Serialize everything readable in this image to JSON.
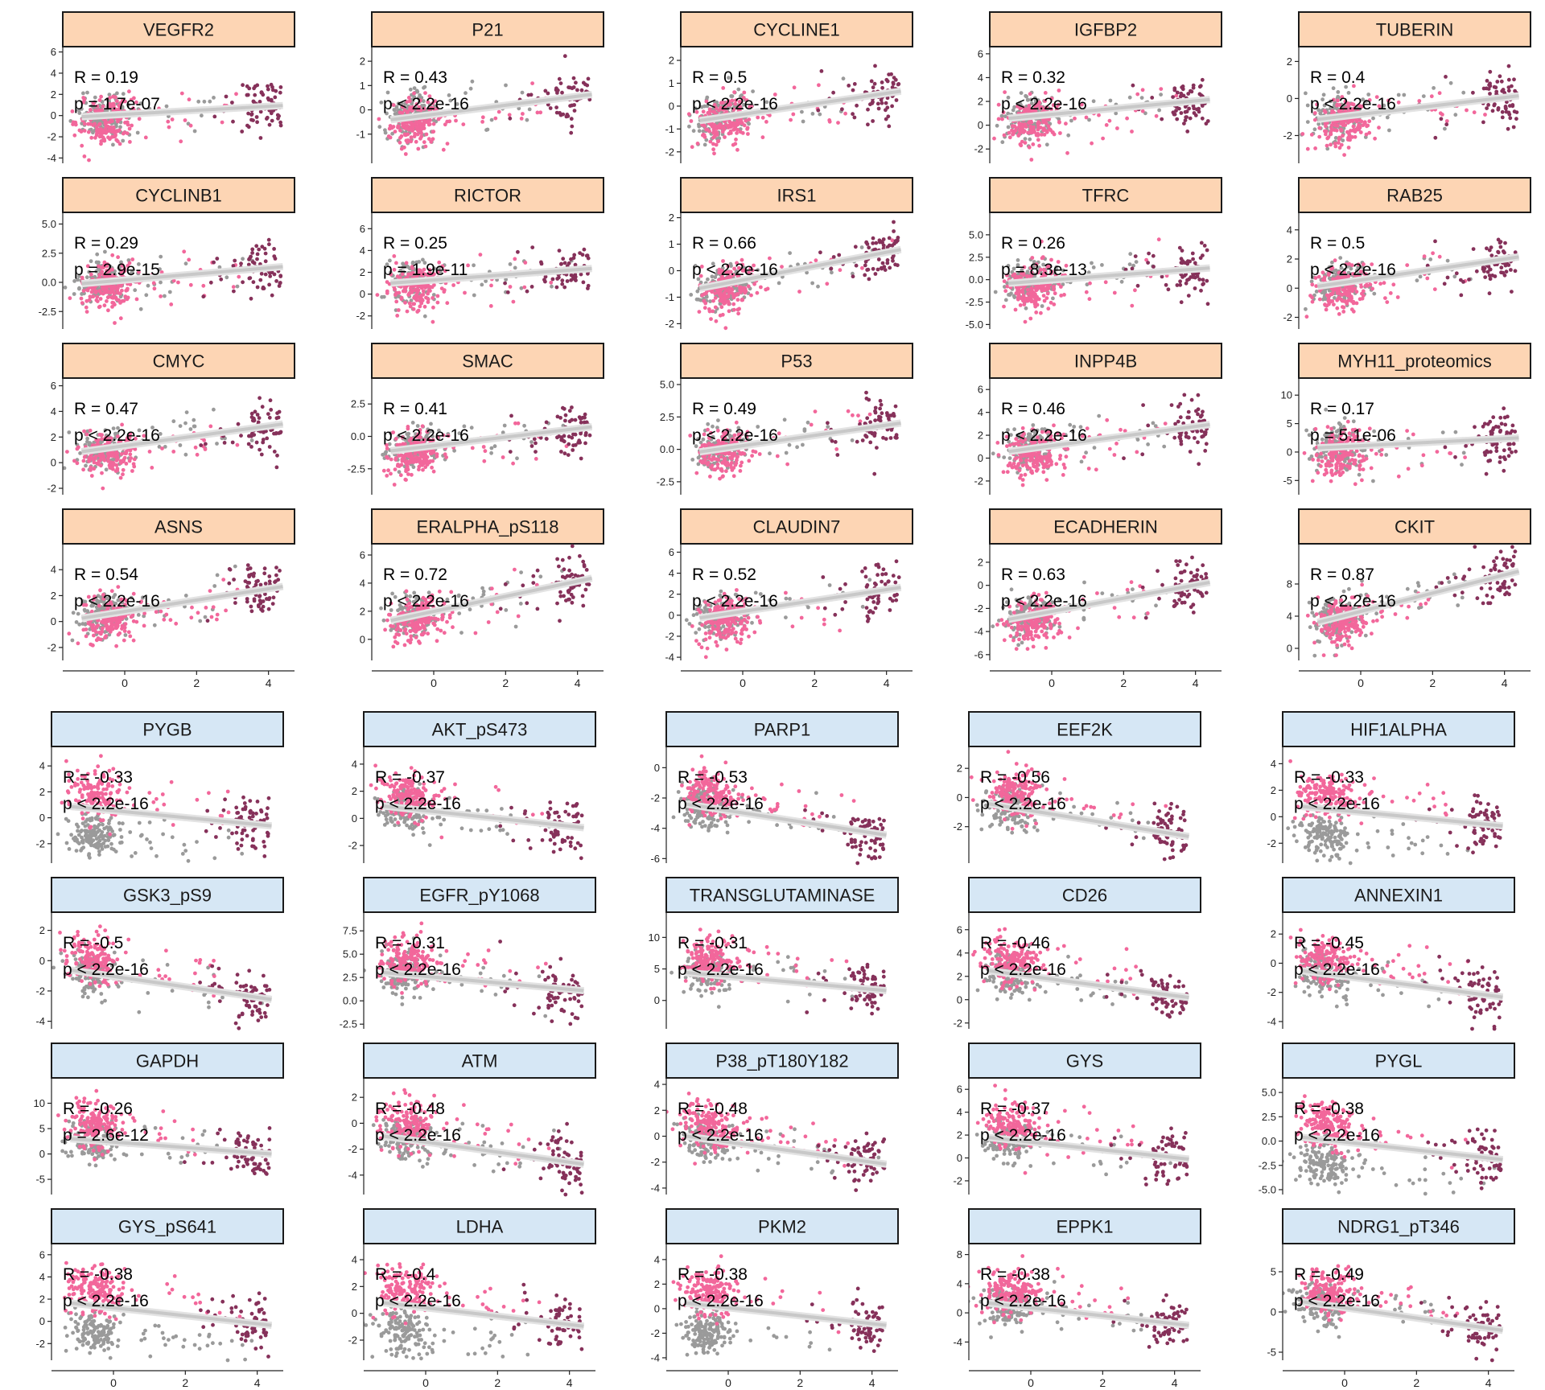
{
  "colors": {
    "up_strip_fill": "#fdd5b4",
    "down_strip_fill": "#d6e7f5",
    "strip_border": "#1a1a1a",
    "point_pink": "#f2679b",
    "point_gray": "#9a9a9a",
    "point_maroon": "#86315a",
    "fit_line": "#c8c8c8",
    "axis": "#222222"
  },
  "chart_data": {
    "type": "scatter",
    "layout": "faceted grid of scatter plots with linear fit line, 5 columns x 8 rows",
    "x_ticks": [
      "0",
      "2",
      "4"
    ],
    "x_tick_values": [
      0,
      2,
      4
    ],
    "xlim": [
      -1.5,
      4.5
    ],
    "panels": [
      {
        "group": "positive",
        "title": "VEGFR2",
        "r_label": "R = 0.19",
        "p_label": "p = 1.7e-07",
        "r": 0.19,
        "yticks": [
          "-4",
          "-2",
          "0",
          "2",
          "4",
          "6"
        ],
        "ylim": [
          -4.5,
          6.5
        ]
      },
      {
        "group": "positive",
        "title": "P21",
        "r_label": "R = 0.43",
        "p_label": "p < 2.2e-16",
        "r": 0.43,
        "yticks": [
          "-1",
          "0",
          "1",
          "2"
        ],
        "ylim": [
          -2.2,
          2.6
        ]
      },
      {
        "group": "positive",
        "title": "CYCLINE1",
        "r_label": "R = 0.5",
        "p_label": "p < 2.2e-16",
        "r": 0.5,
        "yticks": [
          "-2",
          "-1",
          "0",
          "1",
          "2"
        ],
        "ylim": [
          -2.5,
          2.6
        ]
      },
      {
        "group": "positive",
        "title": "IGFBP2",
        "r_label": "R = 0.32",
        "p_label": "p < 2.2e-16",
        "r": 0.32,
        "yticks": [
          "-2",
          "0",
          "2",
          "4",
          "6"
        ],
        "ylim": [
          -3.2,
          6.6
        ]
      },
      {
        "group": "positive",
        "title": "TUBERIN",
        "r_label": "R = 0.4",
        "p_label": "p < 2.2e-16",
        "r": 0.4,
        "yticks": [
          "-2",
          "0",
          "2"
        ],
        "ylim": [
          -3.5,
          2.8
        ]
      },
      {
        "group": "positive",
        "title": "CYCLINB1",
        "r_label": "R = 0.29",
        "p_label": "p = 2.9e-15",
        "r": 0.29,
        "yticks": [
          "-2.5",
          "0.0",
          "2.5",
          "5.0"
        ],
        "ylim": [
          -4.0,
          6.0
        ]
      },
      {
        "group": "positive",
        "title": "RICTOR",
        "r_label": "R = 0.25",
        "p_label": "p = 1.9e-11",
        "r": 0.25,
        "yticks": [
          "-2",
          "0",
          "2",
          "4",
          "6"
        ],
        "ylim": [
          -3.2,
          7.5
        ]
      },
      {
        "group": "positive",
        "title": "IRS1",
        "r_label": "R = 0.66",
        "p_label": "p < 2.2e-16",
        "r": 0.66,
        "yticks": [
          "-2",
          "-1",
          "0",
          "1",
          "2"
        ],
        "ylim": [
          -2.2,
          2.2
        ]
      },
      {
        "group": "positive",
        "title": "TFRC",
        "r_label": "R = 0.26",
        "p_label": "p = 8.3e-13",
        "r": 0.26,
        "yticks": [
          "-5.0",
          "-2.5",
          "0.0",
          "2.5",
          "5.0"
        ],
        "ylim": [
          -5.5,
          7.5
        ]
      },
      {
        "group": "positive",
        "title": "RAB25",
        "r_label": "R = 0.5",
        "p_label": "p < 2.2e-16",
        "r": 0.5,
        "yticks": [
          "-2",
          "0",
          "2",
          "4"
        ],
        "ylim": [
          -2.8,
          5.2
        ]
      },
      {
        "group": "positive",
        "title": "CMYC",
        "r_label": "R = 0.47",
        "p_label": "p < 2.2e-16",
        "r": 0.47,
        "yticks": [
          "-2",
          "0",
          "2",
          "4",
          "6"
        ],
        "ylim": [
          -2.5,
          6.6
        ]
      },
      {
        "group": "positive",
        "title": "SMAC",
        "r_label": "R = 0.41",
        "p_label": "p < 2.2e-16",
        "r": 0.41,
        "yticks": [
          "-2.5",
          "0.0",
          "2.5"
        ],
        "ylim": [
          -4.5,
          4.5
        ]
      },
      {
        "group": "positive",
        "title": "P53",
        "r_label": "R = 0.49",
        "p_label": "p < 2.2e-16",
        "r": 0.49,
        "yticks": [
          "-2.5",
          "0.0",
          "2.5",
          "5.0"
        ],
        "ylim": [
          -3.5,
          5.5
        ]
      },
      {
        "group": "positive",
        "title": "INPP4B",
        "r_label": "R = 0.46",
        "p_label": "p < 2.2e-16",
        "r": 0.46,
        "yticks": [
          "-2",
          "0",
          "2",
          "4",
          "6"
        ],
        "ylim": [
          -3.2,
          7.0
        ]
      },
      {
        "group": "positive",
        "title": "MYH11_proteomics",
        "r_label": "R = 0.17",
        "p_label": "p = 5.1e-06",
        "r": 0.17,
        "yticks": [
          "-5",
          "0",
          "5",
          "10"
        ],
        "ylim": [
          -7.5,
          13.0
        ]
      },
      {
        "group": "positive",
        "title": "ASNS",
        "r_label": "R = 0.54",
        "p_label": "p < 2.2e-16",
        "r": 0.54,
        "yticks": [
          "-2",
          "0",
          "2",
          "4"
        ],
        "ylim": [
          -3.0,
          6.0
        ]
      },
      {
        "group": "positive",
        "title": "ERALPHA_pS118",
        "r_label": "R = 0.72",
        "p_label": "p < 2.2e-16",
        "r": 0.72,
        "yticks": [
          "0",
          "2",
          "4",
          "6"
        ],
        "ylim": [
          -1.5,
          6.8
        ]
      },
      {
        "group": "positive",
        "title": "CLAUDIN7",
        "r_label": "R = 0.52",
        "p_label": "p < 2.2e-16",
        "r": 0.52,
        "yticks": [
          "-4",
          "-2",
          "0",
          "2",
          "4",
          "6"
        ],
        "ylim": [
          -4.3,
          6.8
        ]
      },
      {
        "group": "positive",
        "title": "ECADHERIN",
        "r_label": "R = 0.63",
        "p_label": "p < 2.2e-16",
        "r": 0.63,
        "yticks": [
          "-6",
          "-4",
          "-2",
          "0",
          "2"
        ],
        "ylim": [
          -6.5,
          3.6
        ]
      },
      {
        "group": "positive",
        "title": "CKIT",
        "r_label": "R = 0.87",
        "p_label": "p < 2.2e-16",
        "r": 0.87,
        "yticks": [
          "0",
          "4",
          "8"
        ],
        "ylim": [
          -1.5,
          13.0
        ]
      },
      {
        "group": "negative",
        "title": "PYGB",
        "r_label": "R = -0.33",
        "p_label": "p < 2.2e-16",
        "r": -0.33,
        "yticks": [
          "-2",
          "0",
          "2",
          "4"
        ],
        "ylim": [
          -3.5,
          5.5
        ]
      },
      {
        "group": "negative",
        "title": "AKT_pS473",
        "r_label": "R = -0.37",
        "p_label": "p < 2.2e-16",
        "r": -0.37,
        "yticks": [
          "-2",
          "0",
          "2",
          "4"
        ],
        "ylim": [
          -3.3,
          5.3
        ]
      },
      {
        "group": "negative",
        "title": "PARP1",
        "r_label": "R = -0.53",
        "p_label": "p < 2.2e-16",
        "r": -0.53,
        "yticks": [
          "-6",
          "-4",
          "-2",
          "0"
        ],
        "ylim": [
          -6.3,
          1.4
        ]
      },
      {
        "group": "negative",
        "title": "EEF2K",
        "r_label": "R = -0.56",
        "p_label": "p < 2.2e-16",
        "r": -0.56,
        "yticks": [
          "-2",
          "0",
          "2"
        ],
        "ylim": [
          -4.5,
          3.5
        ]
      },
      {
        "group": "negative",
        "title": "HIF1ALPHA",
        "r_label": "R = -0.33",
        "p_label": "p < 2.2e-16",
        "r": -0.33,
        "yticks": [
          "-2",
          "0",
          "2",
          "4"
        ],
        "ylim": [
          -3.5,
          5.3
        ]
      },
      {
        "group": "negative",
        "title": "GSK3_pS9",
        "r_label": "R = -0.5",
        "p_label": "p < 2.2e-16",
        "r": -0.5,
        "yticks": [
          "-4",
          "-2",
          "0",
          "2"
        ],
        "ylim": [
          -4.5,
          3.2
        ]
      },
      {
        "group": "negative",
        "title": "EGFR_pY1068",
        "r_label": "R = -0.31",
        "p_label": "p < 2.2e-16",
        "r": -0.31,
        "yticks": [
          "-2.5",
          "0.0",
          "2.5",
          "5.0",
          "7.5"
        ],
        "ylim": [
          -3.0,
          9.5
        ]
      },
      {
        "group": "negative",
        "title": "TRANSGLUTAMINASE",
        "r_label": "R = -0.31",
        "p_label": "p < 2.2e-16",
        "r": -0.31,
        "yticks": [
          "0",
          "5",
          "10"
        ],
        "ylim": [
          -4.5,
          14.0
        ]
      },
      {
        "group": "negative",
        "title": "CD26",
        "r_label": "R = -0.46",
        "p_label": "p < 2.2e-16",
        "r": -0.46,
        "yticks": [
          "-2",
          "0",
          "2",
          "4",
          "6"
        ],
        "ylim": [
          -2.5,
          7.5
        ]
      },
      {
        "group": "negative",
        "title": "ANNEXIN1",
        "r_label": "R = -0.45",
        "p_label": "p < 2.2e-16",
        "r": -0.45,
        "yticks": [
          "-4",
          "-2",
          "0",
          "2"
        ],
        "ylim": [
          -4.5,
          3.5
        ]
      },
      {
        "group": "negative",
        "title": "GAPDH",
        "r_label": "R = -0.26",
        "p_label": "p = 2.6e-12",
        "r": -0.26,
        "yticks": [
          "-5",
          "0",
          "5",
          "10"
        ],
        "ylim": [
          -8.0,
          15.0
        ]
      },
      {
        "group": "negative",
        "title": "ATM",
        "r_label": "R = -0.48",
        "p_label": "p < 2.2e-16",
        "r": -0.48,
        "yticks": [
          "-4",
          "-2",
          "0",
          "2"
        ],
        "ylim": [
          -5.5,
          3.5
        ]
      },
      {
        "group": "negative",
        "title": "P38_pT180Y182",
        "r_label": "R = -0.48",
        "p_label": "p < 2.2e-16",
        "r": -0.48,
        "yticks": [
          "-4",
          "-2",
          "0",
          "2",
          "4"
        ],
        "ylim": [
          -4.5,
          4.5
        ]
      },
      {
        "group": "negative",
        "title": "GYS",
        "r_label": "R = -0.37",
        "p_label": "p < 2.2e-16",
        "r": -0.37,
        "yticks": [
          "-2",
          "0",
          "2",
          "4",
          "6"
        ],
        "ylim": [
          -3.2,
          7.0
        ]
      },
      {
        "group": "negative",
        "title": "PYGL",
        "r_label": "R = -0.38",
        "p_label": "p < 2.2e-16",
        "r": -0.38,
        "yticks": [
          "-5.0",
          "-2.5",
          "0.0",
          "2.5",
          "5.0"
        ],
        "ylim": [
          -5.5,
          6.5
        ]
      },
      {
        "group": "negative",
        "title": "GYS_pS641",
        "r_label": "R = -0.38",
        "p_label": "p < 2.2e-16",
        "r": -0.38,
        "yticks": [
          "-2",
          "0",
          "2",
          "4",
          "6"
        ],
        "ylim": [
          -3.5,
          7.0
        ]
      },
      {
        "group": "negative",
        "title": "LDHA",
        "r_label": "R = -0.4",
        "p_label": "p < 2.2e-16",
        "r": -0.4,
        "yticks": [
          "-2",
          "0",
          "2",
          "4"
        ],
        "ylim": [
          -3.5,
          5.2
        ]
      },
      {
        "group": "negative",
        "title": "PKM2",
        "r_label": "R = -0.38",
        "p_label": "p < 2.2e-16",
        "r": -0.38,
        "yticks": [
          "-4",
          "-2",
          "0",
          "2",
          "4"
        ],
        "ylim": [
          -4.2,
          5.3
        ]
      },
      {
        "group": "negative",
        "title": "EPPK1",
        "r_label": "R = -0.38",
        "p_label": "p < 2.2e-16",
        "r": -0.38,
        "yticks": [
          "-4",
          "0",
          "4",
          "8"
        ],
        "ylim": [
          -6.5,
          9.5
        ]
      },
      {
        "group": "negative",
        "title": "NDRG1_pT346",
        "r_label": "R = -0.49",
        "p_label": "p < 2.2e-16",
        "r": -0.49,
        "yticks": [
          "-5",
          "0",
          "5"
        ],
        "ylim": [
          -6.0,
          8.5
        ]
      }
    ]
  }
}
